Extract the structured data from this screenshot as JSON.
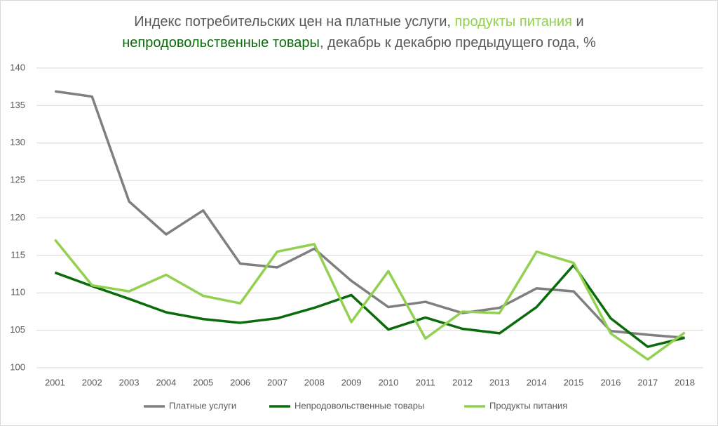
{
  "chart_data": {
    "type": "line",
    "title": [
      [
        {
          "text": "Индекс потребительских цен на платные услуги, ",
          "color": "#595959"
        },
        {
          "text": "продукты питания",
          "color": "#92d050"
        },
        {
          "text": " и",
          "color": "#595959"
        }
      ],
      [
        {
          "text": "непродовольственные товары",
          "color": "#0a6b0a"
        },
        {
          "text": ", декабрь к декабрю предыдущего года, %",
          "color": "#595959"
        }
      ]
    ],
    "categories": [
      "2001",
      "2002",
      "2003",
      "2004",
      "2005",
      "2006",
      "2007",
      "2008",
      "2009",
      "2010",
      "2011",
      "2012",
      "2013",
      "2014",
      "2015",
      "2016",
      "2017",
      "2018"
    ],
    "series": [
      {
        "name": "Платные услуги",
        "color": "#7f7f7f",
        "values": [
          136.9,
          136.2,
          122.2,
          117.8,
          121.0,
          113.9,
          113.4,
          115.9,
          111.6,
          108.1,
          108.8,
          107.3,
          108.0,
          110.6,
          110.2,
          104.9,
          104.4,
          104.0
        ]
      },
      {
        "name": "Непродовольственные товары",
        "color": "#0a6b0a",
        "values": [
          112.7,
          110.9,
          109.2,
          107.4,
          106.5,
          106.0,
          106.6,
          108.0,
          109.7,
          105.1,
          106.7,
          105.2,
          104.6,
          108.1,
          113.7,
          106.6,
          102.8,
          104.0
        ]
      },
      {
        "name": "Продукты питания",
        "color": "#92d050",
        "values": [
          117.1,
          111.0,
          110.2,
          112.4,
          109.6,
          108.6,
          115.5,
          116.5,
          106.1,
          112.9,
          103.9,
          107.5,
          107.3,
          115.5,
          114.0,
          104.6,
          101.1,
          104.7
        ]
      }
    ],
    "ylim": [
      100,
      140
    ],
    "yticks": [
      100,
      105,
      110,
      115,
      120,
      125,
      130,
      135,
      140
    ],
    "grid": true,
    "legend": "bottom"
  }
}
